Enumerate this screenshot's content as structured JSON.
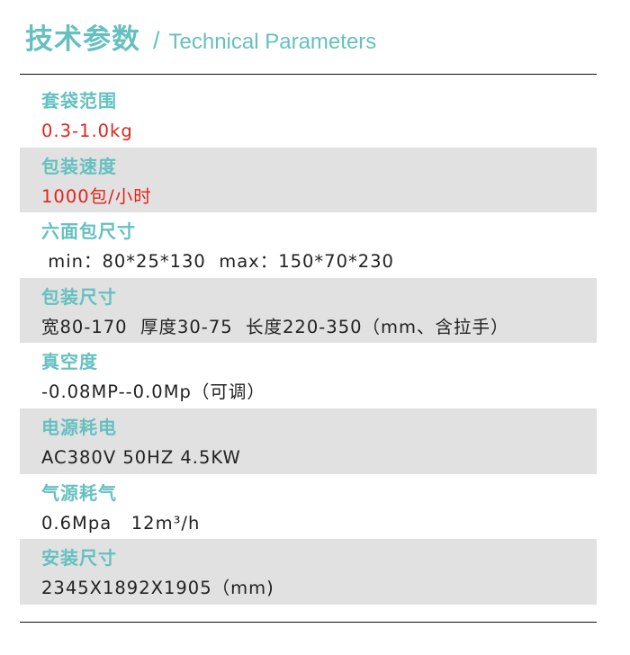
{
  "header": {
    "title_cn": "技术参数",
    "separator": "/",
    "title_en": "Technical Parameters"
  },
  "accent_color": "#66c0c0",
  "highlight_color": "#e0241c",
  "params": [
    {
      "label": "套袋范围",
      "value": "0.3-1.0kg",
      "highlight": true
    },
    {
      "label": "包装速度",
      "value": "1000包/小时",
      "highlight": true
    },
    {
      "label": "六面包尺寸",
      "value": " min：80*25*130  max：150*70*230",
      "highlight": false
    },
    {
      "label": "包装尺寸",
      "value": "宽80-170  厚度30-75  长度220-350（mm、含拉手）",
      "highlight": false
    },
    {
      "label": "真空度",
      "value": "-0.08MP--0.0Mp（可调）",
      "highlight": false
    },
    {
      "label": "电源耗电",
      "value": "AC380V 50HZ 4.5KW",
      "highlight": false
    },
    {
      "label": "气源耗气",
      "value": "0.6Mpa   12m³/h",
      "highlight": false
    },
    {
      "label": "安装尺寸",
      "value": "2345X1892X1905（mm)",
      "highlight": false
    }
  ]
}
